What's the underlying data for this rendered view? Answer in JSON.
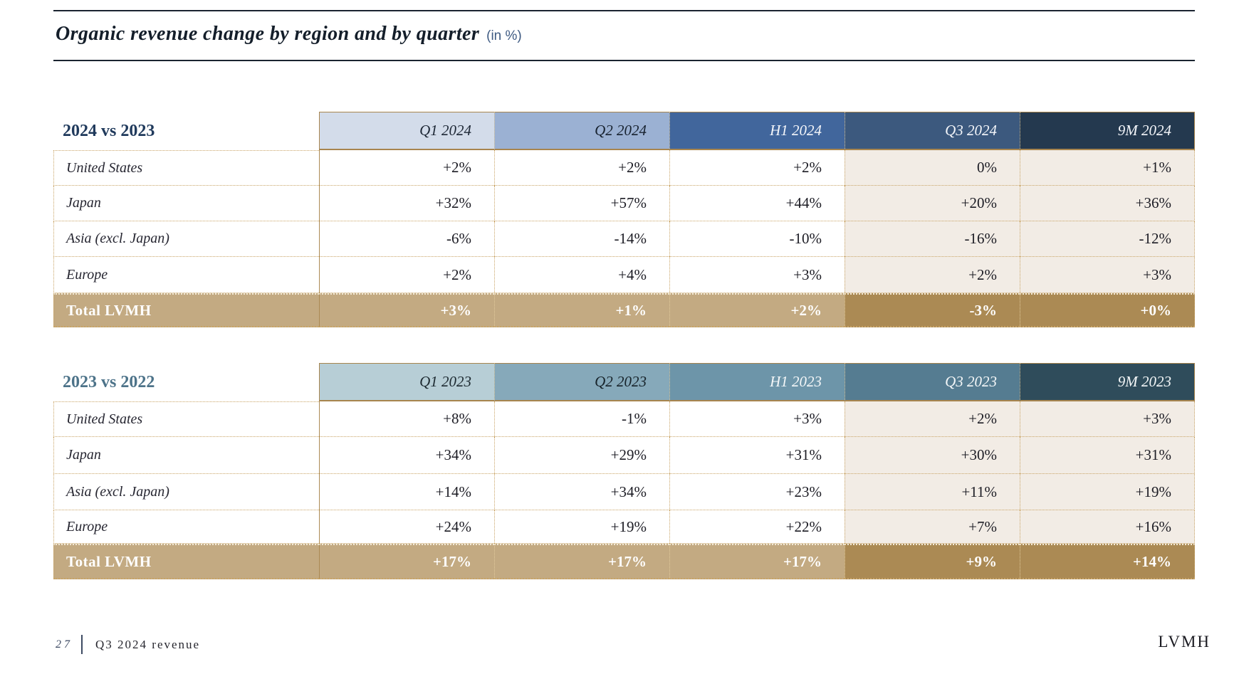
{
  "slide": {
    "title": "Organic revenue change by region and by quarter",
    "title_suffix": "(in %)"
  },
  "tables": [
    {
      "period_label": "2024 vs 2023",
      "columns": [
        "Q1 2024",
        "Q2 2024",
        "H1 2024",
        "Q3 2024",
        "9M 2024"
      ],
      "rows": [
        {
          "region": "United States",
          "values": [
            "+2%",
            "+2%",
            "+2%",
            "0%",
            "+1%"
          ]
        },
        {
          "region": "Japan",
          "values": [
            "+32%",
            "+57%",
            "+44%",
            "+20%",
            "+36%"
          ]
        },
        {
          "region": "Asia (excl. Japan)",
          "values": [
            "-6%",
            "-14%",
            "-10%",
            "-16%",
            "-12%"
          ]
        },
        {
          "region": "Europe",
          "values": [
            "+2%",
            "+4%",
            "+3%",
            "+2%",
            "+3%"
          ]
        }
      ],
      "total": {
        "label": "Total LVMH",
        "values": [
          "+3%",
          "+1%",
          "+2%",
          "-3%",
          "+0%"
        ]
      }
    },
    {
      "period_label": "2023 vs 2022",
      "columns": [
        "Q1 2023",
        "Q2 2023",
        "H1 2023",
        "Q3 2023",
        "9M 2023"
      ],
      "rows": [
        {
          "region": "United States",
          "values": [
            "+8%",
            "-1%",
            "+3%",
            "+2%",
            "+3%"
          ]
        },
        {
          "region": "Japan",
          "values": [
            "+34%",
            "+29%",
            "+31%",
            "+30%",
            "+31%"
          ]
        },
        {
          "region": "Asia (excl. Japan)",
          "values": [
            "+14%",
            "+34%",
            "+23%",
            "+11%",
            "+19%"
          ]
        },
        {
          "region": "Europe",
          "values": [
            "+24%",
            "+19%",
            "+22%",
            "+7%",
            "+16%"
          ]
        }
      ],
      "total": {
        "label": "Total LVMH",
        "values": [
          "+17%",
          "+17%",
          "+17%",
          "+9%",
          "+14%"
        ]
      }
    }
  ],
  "footer": {
    "page_number": "27",
    "section": "Q3 2024 revenue",
    "brand": "LVMH"
  },
  "colors": {
    "header_2024": [
      "#d3dcea",
      "#9bb1d3",
      "#41669c",
      "#3c597e",
      "#24394f"
    ],
    "header_2023": [
      "#b7ced6",
      "#86a9ba",
      "#6d95a9",
      "#557c91",
      "#2f4c5b"
    ],
    "total_row_light": "#c3aa82",
    "total_row_dark": "#ab8a54",
    "cream_column": "#f2ece5",
    "border_gold": "#c9a466",
    "title_suffix_blue": "#3e5a82",
    "period_label_2024": "#203a5c",
    "period_label_2023": "#4d7389"
  }
}
